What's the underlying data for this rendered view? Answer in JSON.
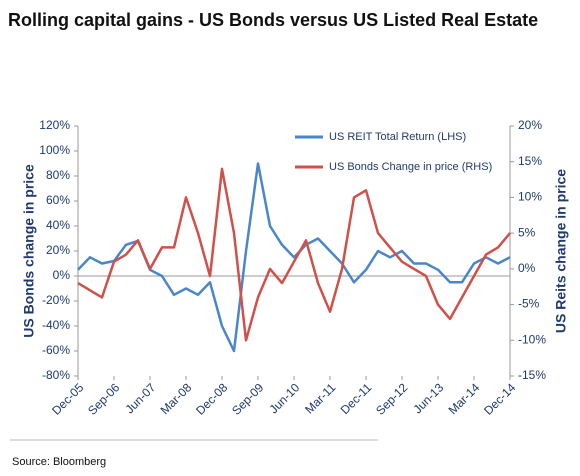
{
  "chart_data": {
    "type": "line",
    "title": "Rolling capital gains - US Bonds versus US Listed Real Estate",
    "y_label": "US Bonds change in price",
    "y2_label": "US Reits change in price",
    "source": "Source: Bloomberg",
    "categories": [
      "Dec-05",
      null,
      null,
      "Sep-06",
      null,
      null,
      "Jun-07",
      null,
      null,
      "Mar-08",
      null,
      null,
      "Dec-08",
      null,
      null,
      "Sep-09",
      null,
      null,
      "Jun-10",
      null,
      null,
      "Mar-11",
      null,
      null,
      "Dec-11",
      null,
      null,
      "Sep-12",
      null,
      null,
      "Jun-13",
      null,
      null,
      "Mar-14",
      null,
      null,
      "Dec-14"
    ],
    "series": [
      {
        "name": "US REIT Total Return (LHS)",
        "color": "#4a86c8",
        "axis": "y",
        "values": [
          5,
          15,
          10,
          12,
          25,
          28,
          5,
          0,
          -15,
          -10,
          -15,
          -5,
          -40,
          -60,
          20,
          90,
          40,
          25,
          15,
          25,
          30,
          20,
          10,
          -5,
          5,
          20,
          15,
          20,
          10,
          10,
          5,
          -5,
          -5,
          10,
          15,
          10,
          15
        ]
      },
      {
        "name": "US Bonds Change in price (RHS)",
        "color": "#d0504a",
        "axis": "y2",
        "values": [
          -2,
          -3,
          -4,
          1,
          2,
          4,
          0,
          3,
          3,
          10,
          5,
          -1,
          14,
          5,
          -10,
          -4,
          0,
          -2,
          1,
          4,
          -2,
          -6,
          0,
          10,
          11,
          5,
          3,
          1,
          0,
          -1,
          -5,
          -7,
          -4,
          -1,
          2,
          3,
          5
        ]
      }
    ],
    "ylim": [
      -80,
      120
    ],
    "yticks": [
      {
        "value": -80,
        "label": "-80%"
      },
      {
        "value": -60,
        "label": "-60%"
      },
      {
        "value": -40,
        "label": "-40%"
      },
      {
        "value": -20,
        "label": "-20%"
      },
      {
        "value": 0,
        "label": "0%"
      },
      {
        "value": 20,
        "label": "20%"
      },
      {
        "value": 40,
        "label": "40%"
      },
      {
        "value": 60,
        "label": "60%"
      },
      {
        "value": 80,
        "label": "80%"
      },
      {
        "value": 100,
        "label": "100%"
      },
      {
        "value": 120,
        "label": "120%"
      }
    ],
    "y2lim": [
      -15,
      20
    ],
    "y2ticks": [
      {
        "value": -15,
        "label": "-15%"
      },
      {
        "value": -10,
        "label": "-10%"
      },
      {
        "value": -5,
        "label": "-5%"
      },
      {
        "value": 0,
        "label": "0%"
      },
      {
        "value": 5,
        "label": "5%"
      },
      {
        "value": 10,
        "label": "10%"
      },
      {
        "value": 15,
        "label": "15%"
      },
      {
        "value": 20,
        "label": "20%"
      }
    ],
    "legend": "top"
  }
}
